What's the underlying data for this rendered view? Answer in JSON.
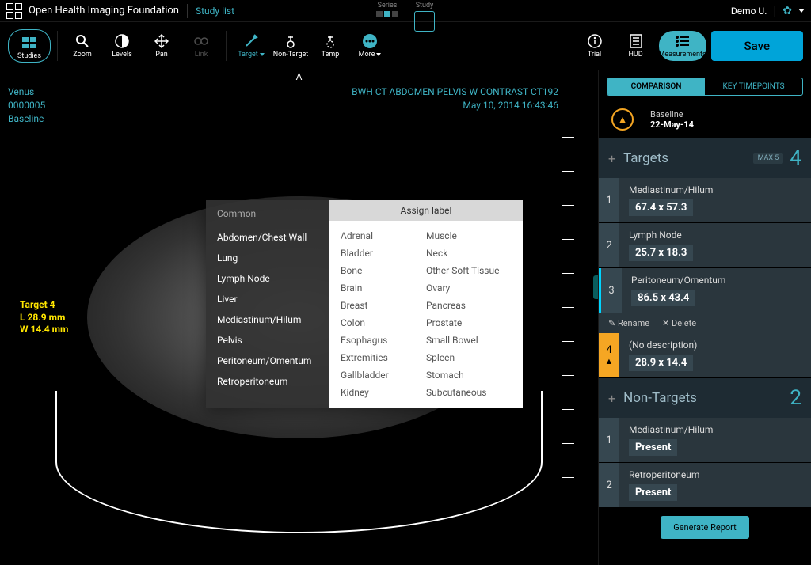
{
  "header": {
    "brand": "Open Health Imaging Foundation",
    "study_list": "Study list",
    "series_label": "Series",
    "study_label": "Study",
    "user": "Demo U."
  },
  "toolbar": {
    "studies": "Studies",
    "zoom": "Zoom",
    "levels": "Levels",
    "pan": "Pan",
    "link": "Link",
    "target": "Target",
    "nontarget": "Non-Target",
    "temp": "Temp",
    "more": "More",
    "trial": "Trial",
    "hud": "HUD",
    "measurements": "Measurements",
    "save": "Save"
  },
  "viewport": {
    "orient_top": "A",
    "patient": "Venus",
    "patient_id": "0000005",
    "timepoint": "Baseline",
    "study_desc": "BWH CT ABDOMEN PELVIS W CONTRAST CT192",
    "study_date": "May 10, 2014 16:43:46",
    "measure_title": "Target 4",
    "measure_l": "L 28.9 mm",
    "measure_w": "W 14.4 mm"
  },
  "popup": {
    "common_header": "Common",
    "common_items": [
      "Abdomen/Chest Wall",
      "Lung",
      "Lymph Node",
      "Liver",
      "Mediastinum/Hilum",
      "Pelvis",
      "Peritoneum/Omentum",
      "Retroperitoneum"
    ],
    "assign_header": "Assign label",
    "col1": [
      "Adrenal",
      "Bladder",
      "Bone",
      "Brain",
      "Breast",
      "Colon",
      "Esophagus",
      "Extremities",
      "Gallbladder",
      "Kidney"
    ],
    "col2": [
      "Muscle",
      "Neck",
      "Other Soft Tissue",
      "Ovary",
      "Pancreas",
      "Prostate",
      "Small Bowel",
      "Spleen",
      "Stomach",
      "Subcutaneous"
    ]
  },
  "sidebar": {
    "tabs": {
      "comparison": "COMPARISON",
      "key": "KEY TIMEPOINTS"
    },
    "baseline_label": "Baseline",
    "baseline_date": "22-May-14",
    "targets_title": "Targets",
    "targets_max": "MAX 5",
    "targets_count": "4",
    "nontargets_title": "Non-Targets",
    "nontargets_count": "2",
    "rename": "Rename",
    "delete": "Delete",
    "generate": "Generate Report",
    "targets": [
      {
        "n": "1",
        "name": "Mediastinum/Hilum",
        "meas": "67.4 x 57.3"
      },
      {
        "n": "2",
        "name": "Lymph Node",
        "meas": "25.7 x 18.3"
      },
      {
        "n": "3",
        "name": "Peritoneum/Omentum",
        "meas": "86.5 x 43.4"
      },
      {
        "n": "4",
        "name": "(No description)",
        "meas": "28.9 x 14.4"
      }
    ],
    "nontargets": [
      {
        "n": "1",
        "name": "Mediastinum/Hilum",
        "meas": "Present"
      },
      {
        "n": "2",
        "name": "Retroperitoneum",
        "meas": "Present"
      }
    ]
  },
  "colors": {
    "accent": "#3fb4c5",
    "warn": "#f5a623",
    "highlight": "#ffe600",
    "save_btn": "#00a4d9",
    "panel_dark": "#1e2b33",
    "panel_row": "#2a363d"
  }
}
